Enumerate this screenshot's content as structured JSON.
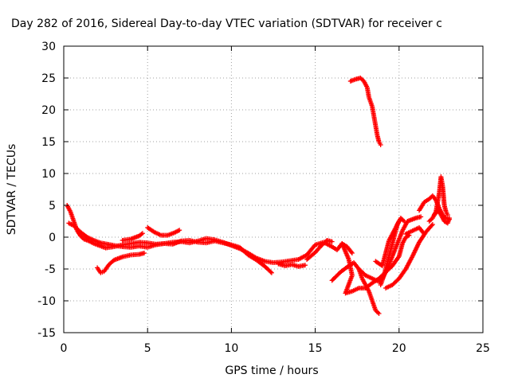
{
  "chart_data": {
    "type": "scatter",
    "title": "Day 282 of 2016, Sidereal Day-to-day VTEC variation (SDTVAR) for receiver c",
    "xlabel": "GPS time / hours",
    "ylabel": "SDTVAR / TECUs",
    "xlim": [
      0,
      25
    ],
    "ylim": [
      -15,
      30
    ],
    "xticks": [
      0,
      5,
      10,
      15,
      20,
      25
    ],
    "yticks": [
      -15,
      -10,
      -5,
      0,
      5,
      10,
      15,
      20,
      25,
      30
    ],
    "grid": true,
    "marker": "plus",
    "color": "#ff0000",
    "series": [
      {
        "points": [
          [
            0.2,
            5.0
          ],
          [
            0.4,
            4.0
          ],
          [
            0.6,
            2.5
          ],
          [
            0.8,
            1.0
          ],
          [
            1.0,
            0.2
          ],
          [
            1.2,
            -0.3
          ],
          [
            1.5,
            -0.6
          ],
          [
            1.8,
            -1.0
          ],
          [
            2.1,
            -1.3
          ],
          [
            2.5,
            -1.7
          ],
          [
            3.0,
            -1.5
          ],
          [
            3.5,
            -1.2
          ],
          [
            4.0,
            -1.0
          ],
          [
            4.5,
            -0.8
          ],
          [
            5.0,
            -0.9
          ],
          [
            5.5,
            -1.1
          ],
          [
            6.0,
            -1.0
          ],
          [
            6.5,
            -0.8
          ],
          [
            7.0,
            -0.7
          ],
          [
            7.5,
            -0.9
          ],
          [
            8.0,
            -0.6
          ],
          [
            8.5,
            -0.2
          ],
          [
            9.0,
            -0.4
          ],
          [
            9.5,
            -0.8
          ],
          [
            10.0,
            -1.3
          ],
          [
            10.5,
            -1.8
          ],
          [
            11.0,
            -2.5
          ],
          [
            11.5,
            -3.3
          ],
          [
            12.0,
            -3.8
          ],
          [
            12.5,
            -4.0
          ],
          [
            13.0,
            -3.9
          ],
          [
            13.5,
            -3.7
          ],
          [
            14.0,
            -3.5
          ],
          [
            14.5,
            -2.8
          ],
          [
            15.0,
            -1.2
          ],
          [
            15.5,
            -0.8
          ],
          [
            16.0,
            -1.5
          ],
          [
            16.3,
            -2.0
          ],
          [
            16.6,
            -1.0
          ],
          [
            16.9,
            -1.5
          ],
          [
            17.2,
            -2.5
          ]
        ]
      },
      {
        "points": [
          [
            0.3,
            2.2
          ],
          [
            0.6,
            1.8
          ],
          [
            1.0,
            0.8
          ],
          [
            1.4,
            0.0
          ],
          [
            1.8,
            -0.5
          ],
          [
            2.2,
            -0.9
          ],
          [
            2.6,
            -1.1
          ],
          [
            3.0,
            -1.3
          ],
          [
            3.5,
            -1.5
          ],
          [
            4.0,
            -1.6
          ],
          [
            4.5,
            -1.4
          ],
          [
            5.0,
            -1.6
          ],
          [
            5.5,
            -1.2
          ],
          [
            6.0,
            -1.0
          ],
          [
            6.5,
            -1.1
          ],
          [
            7.0,
            -0.6
          ],
          [
            7.5,
            -0.5
          ],
          [
            8.0,
            -0.8
          ],
          [
            8.5,
            -0.9
          ],
          [
            9.0,
            -0.6
          ],
          [
            9.5,
            -0.9
          ],
          [
            10.0,
            -1.2
          ],
          [
            10.5,
            -1.6
          ],
          [
            11.0,
            -2.8
          ],
          [
            11.5,
            -3.6
          ],
          [
            12.0,
            -4.6
          ],
          [
            12.4,
            -5.6
          ]
        ]
      },
      {
        "points": [
          [
            2.0,
            -4.8
          ],
          [
            2.2,
            -5.6
          ],
          [
            2.4,
            -5.4
          ],
          [
            2.7,
            -4.3
          ],
          [
            3.0,
            -3.6
          ],
          [
            3.5,
            -3.1
          ],
          [
            4.0,
            -2.8
          ],
          [
            4.5,
            -2.7
          ],
          [
            4.8,
            -2.5
          ]
        ]
      },
      {
        "points": [
          [
            5.0,
            1.5
          ],
          [
            5.4,
            0.8
          ],
          [
            5.8,
            0.3
          ],
          [
            6.2,
            0.3
          ],
          [
            6.6,
            0.7
          ],
          [
            6.9,
            1.1
          ]
        ]
      },
      {
        "points": [
          [
            3.5,
            -0.5
          ],
          [
            4.0,
            -0.3
          ],
          [
            4.5,
            0.2
          ],
          [
            4.7,
            0.6
          ]
        ]
      },
      {
        "points": [
          [
            12.8,
            -4.2
          ],
          [
            13.2,
            -4.5
          ],
          [
            13.6,
            -4.3
          ],
          [
            14.0,
            -4.6
          ],
          [
            14.4,
            -4.4
          ]
        ]
      },
      {
        "points": [
          [
            14.5,
            -3.5
          ],
          [
            15.0,
            -2.4
          ],
          [
            15.3,
            -1.5
          ],
          [
            15.7,
            -0.5
          ],
          [
            16.0,
            -0.7
          ]
        ]
      },
      {
        "points": [
          [
            16.0,
            -6.8
          ],
          [
            16.5,
            -5.5
          ],
          [
            17.0,
            -4.5
          ],
          [
            17.3,
            -4.0
          ],
          [
            17.6,
            -5.0
          ],
          [
            17.8,
            -6.5
          ],
          [
            18.0,
            -7.5
          ],
          [
            18.2,
            -8.5
          ],
          [
            18.4,
            -10.0
          ],
          [
            18.6,
            -11.5
          ],
          [
            18.8,
            -12.0
          ]
        ]
      },
      {
        "points": [
          [
            16.6,
            -1.0
          ],
          [
            17.0,
            -3.5
          ],
          [
            17.2,
            -6.0
          ],
          [
            16.8,
            -8.8
          ],
          [
            17.2,
            -8.5
          ],
          [
            17.6,
            -8.0
          ],
          [
            18.0,
            -8.0
          ],
          [
            18.4,
            -7.2
          ],
          [
            18.8,
            -6.5
          ],
          [
            19.2,
            -5.5
          ],
          [
            19.6,
            -4.5
          ],
          [
            20.0,
            -3.0
          ],
          [
            20.2,
            -1.0
          ],
          [
            20.4,
            0.0
          ],
          [
            20.6,
            0.3
          ]
        ]
      },
      {
        "points": [
          [
            17.6,
            -5.0
          ],
          [
            18.0,
            -6.0
          ],
          [
            18.4,
            -6.5
          ],
          [
            18.8,
            -7.0
          ],
          [
            19.0,
            -6.5
          ],
          [
            19.3,
            -5.0
          ],
          [
            19.6,
            -3.0
          ],
          [
            19.9,
            -1.0
          ],
          [
            20.2,
            1.0
          ],
          [
            20.5,
            2.5
          ],
          [
            21.0,
            3.0
          ],
          [
            21.3,
            3.2
          ]
        ]
      },
      {
        "points": [
          [
            18.6,
            -3.8
          ],
          [
            19.0,
            -4.5
          ],
          [
            19.2,
            -2.5
          ],
          [
            19.4,
            -0.5
          ],
          [
            19.6,
            0.5
          ],
          [
            19.8,
            1.5
          ],
          [
            20.0,
            2.5
          ]
        ]
      },
      {
        "points": [
          [
            18.9,
            -7.5
          ],
          [
            19.1,
            -6.0
          ],
          [
            19.3,
            -4.0
          ],
          [
            19.5,
            -2.0
          ],
          [
            19.7,
            0.0
          ],
          [
            19.9,
            2.0
          ],
          [
            20.1,
            3.0
          ],
          [
            20.3,
            2.5
          ]
        ]
      },
      {
        "points": [
          [
            19.2,
            -8.0
          ],
          [
            19.6,
            -7.5
          ],
          [
            20.0,
            -6.5
          ],
          [
            20.4,
            -5.0
          ],
          [
            20.8,
            -3.0
          ],
          [
            21.2,
            -0.8
          ],
          [
            21.6,
            0.8
          ],
          [
            22.0,
            2.0
          ]
        ]
      },
      {
        "points": [
          [
            20.4,
            0.5
          ],
          [
            20.8,
            1.0
          ],
          [
            21.2,
            1.5
          ],
          [
            21.5,
            0.5
          ]
        ]
      },
      {
        "points": [
          [
            21.2,
            4.2
          ],
          [
            21.5,
            5.5
          ],
          [
            21.8,
            6.0
          ],
          [
            22.0,
            6.5
          ],
          [
            22.2,
            5.8
          ],
          [
            22.4,
            4.5
          ],
          [
            22.6,
            3.5
          ],
          [
            22.8,
            3.0
          ],
          [
            23.0,
            2.8
          ]
        ]
      },
      {
        "points": [
          [
            21.8,
            2.5
          ],
          [
            22.0,
            3.0
          ],
          [
            22.2,
            4.0
          ],
          [
            22.4,
            7.0
          ],
          [
            22.5,
            9.5
          ],
          [
            22.6,
            8.0
          ],
          [
            22.7,
            5.0
          ],
          [
            22.8,
            4.0
          ],
          [
            22.9,
            3.5
          ]
        ]
      },
      {
        "points": [
          [
            22.1,
            3.5
          ],
          [
            22.3,
            4.2
          ],
          [
            22.5,
            3.5
          ],
          [
            22.7,
            2.5
          ],
          [
            22.9,
            2.2
          ],
          [
            23.0,
            3.0
          ]
        ]
      },
      {
        "points": [
          [
            17.1,
            24.5
          ],
          [
            17.4,
            24.8
          ],
          [
            17.7,
            25.0
          ],
          [
            17.9,
            24.5
          ],
          [
            18.1,
            23.5
          ],
          [
            18.2,
            22.0
          ],
          [
            18.4,
            20.5
          ],
          [
            18.5,
            19.0
          ],
          [
            18.6,
            17.5
          ],
          [
            18.7,
            16.0
          ],
          [
            18.8,
            15.0
          ],
          [
            18.9,
            14.5
          ]
        ]
      }
    ]
  }
}
